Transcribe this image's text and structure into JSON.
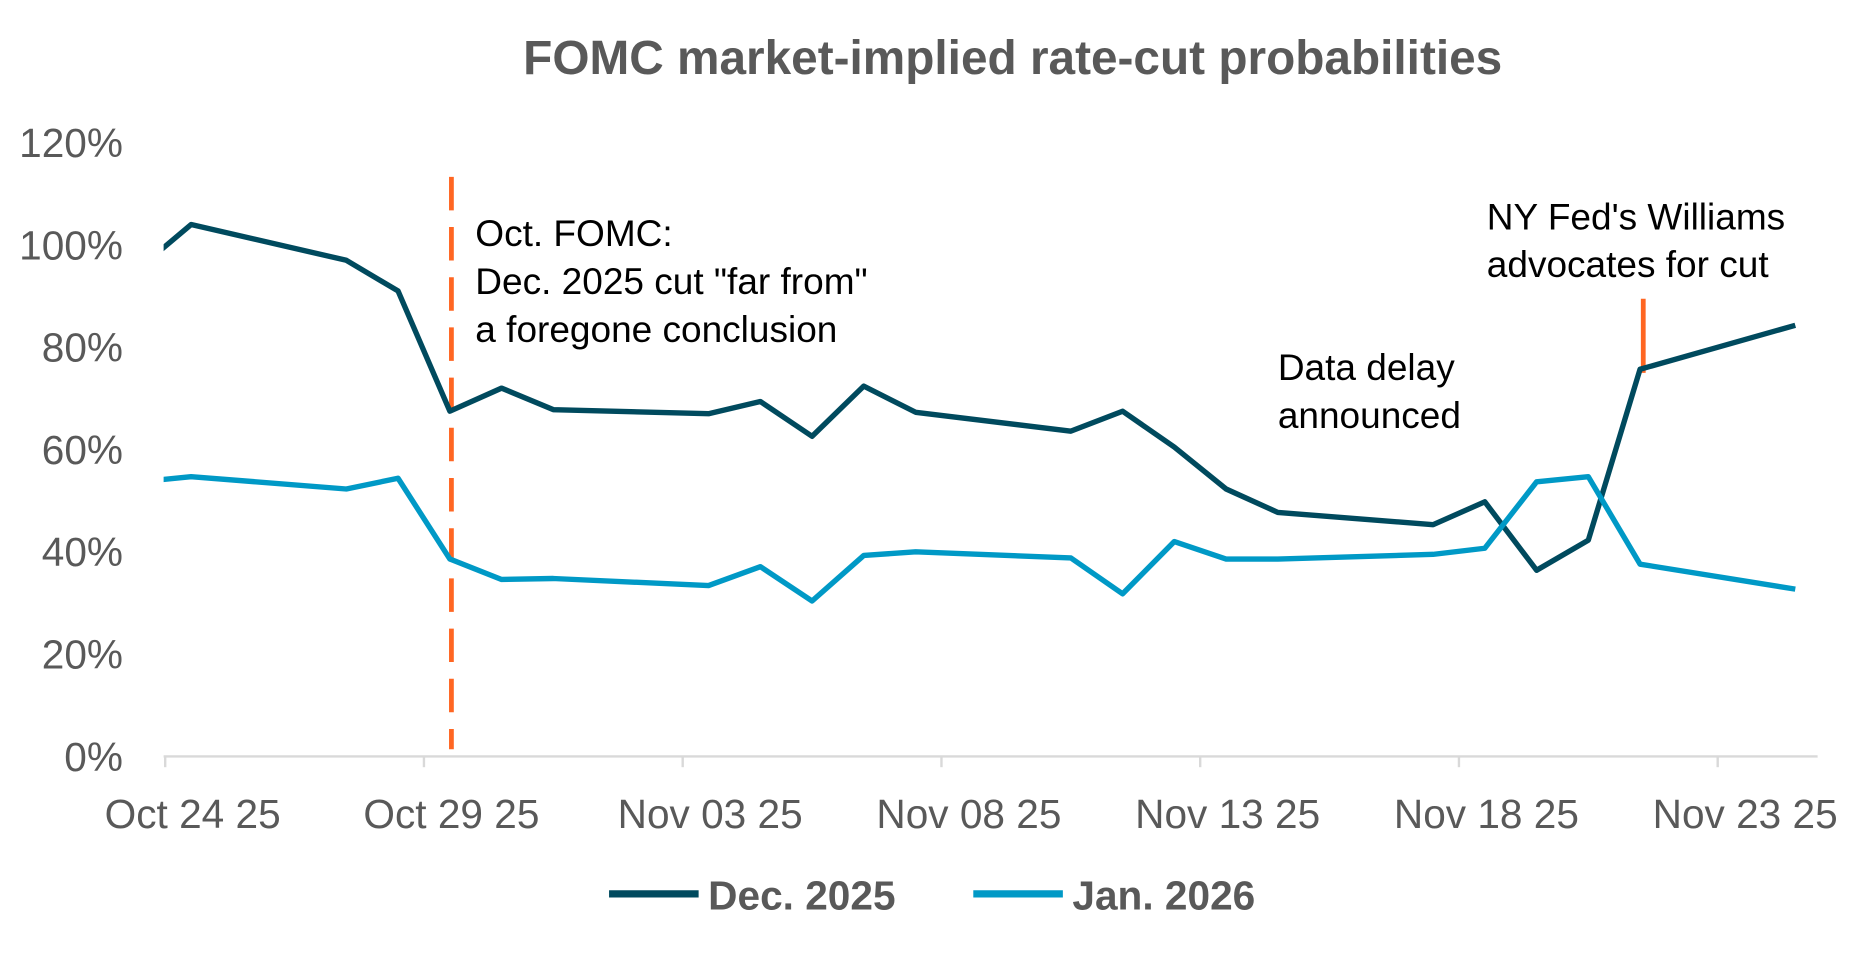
{
  "chart_data": {
    "type": "line",
    "title": "FOMC market-implied rate-cut probabilities",
    "xlabel": "",
    "ylabel": "",
    "ylim": [
      0,
      120
    ],
    "yticks": [
      "0%",
      "20%",
      "40%",
      "60%",
      "80%",
      "100%",
      "120%"
    ],
    "ytick_values": [
      0,
      20,
      40,
      60,
      80,
      100,
      120
    ],
    "xticks": [
      "Oct 24 25",
      "Oct 29 25",
      "Nov 03 25",
      "Nov 08 25",
      "Nov 13 25",
      "Nov 18 25",
      "Nov 23 25"
    ],
    "xtick_dates": [
      "2025-10-24",
      "2025-10-29",
      "2025-11-03",
      "2025-11-08",
      "2025-11-13",
      "2025-11-18",
      "2025-11-23"
    ],
    "grid": false,
    "legend": "bottom",
    "x": [
      "2025-10-23",
      "2025-10-24",
      "2025-10-27",
      "2025-10-28",
      "2025-10-29",
      "2025-10-30",
      "2025-10-31",
      "2025-11-03",
      "2025-11-04",
      "2025-11-05",
      "2025-11-06",
      "2025-11-07",
      "2025-11-10",
      "2025-11-11",
      "2025-11-12",
      "2025-11-13",
      "2025-11-14",
      "2025-11-17",
      "2025-11-18",
      "2025-11-19",
      "2025-11-20",
      "2025-11-21",
      "2025-11-24"
    ],
    "series": [
      {
        "name": "Dec. 2025",
        "color": "#004a5e",
        "values": [
          95.5,
          104,
          97,
          91,
          67.5,
          72,
          67.8,
          67,
          69.4,
          62.6,
          72.4,
          67.3,
          63.6,
          67.5,
          60.5,
          52.3,
          47.7,
          45.3,
          49.8,
          36.4,
          42.3,
          75.7,
          84.3
        ]
      },
      {
        "name": "Jan. 2026",
        "color": "#0099c6",
        "values": [
          53.7,
          54.7,
          52.3,
          54.4,
          38.6,
          34.6,
          34.8,
          33.4,
          37.1,
          30.4,
          39.3,
          40,
          38.8,
          31.8,
          42,
          38.6,
          38.6,
          39.5,
          40.7,
          53.7,
          54.7,
          37.6,
          32.7
        ]
      }
    ],
    "annotations": [
      {
        "lines": [
          "Oct. FOMC:",
          "Dec. 2025 cut \"far from\"",
          "a foregone conclusion"
        ],
        "date": "2025-10-29",
        "marker": "dashed-vertical-line",
        "color": "#ff6622"
      },
      {
        "lines": [
          "Data delay",
          "announced"
        ]
      },
      {
        "lines": [
          "NY Fed's Williams",
          "advocates for cut"
        ],
        "date": "2025-11-21",
        "marker": "vertical-tick",
        "color": "#ff6622"
      }
    ]
  }
}
